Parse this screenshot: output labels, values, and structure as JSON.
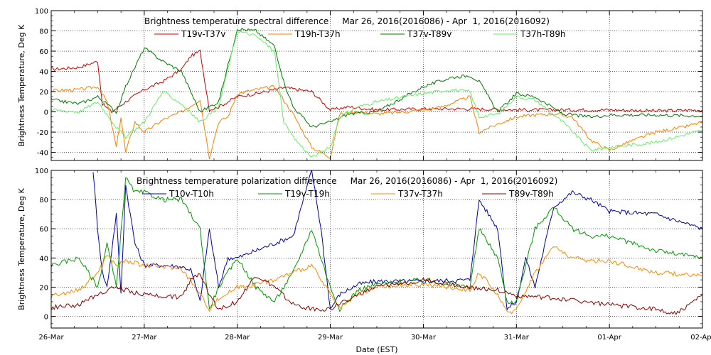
{
  "chart_data": [
    {
      "type": "line",
      "title": "Brightness temperature spectral difference     Mar 26, 2016(2016086) - Apr  1, 2016(2016092)",
      "ylabel": "Brightness Temperature, Deg K",
      "xlabel": "",
      "xlim": [
        0,
        7
      ],
      "ylim": [
        -48,
        100
      ],
      "yticks": [
        -40,
        -20,
        0,
        20,
        40,
        60,
        80,
        100
      ],
      "xtick_labels": [
        "26-Mar",
        "27-Mar",
        "28-Mar",
        "29-Mar",
        "30-Mar",
        "31-Mar",
        "01-Apr",
        "02-Apr"
      ],
      "grid": true,
      "legend_position": "top",
      "series": [
        {
          "name": "T19v-T37v",
          "color": "#cc0000",
          "x": [
            0,
            0.3,
            0.5,
            0.55,
            0.65,
            0.8,
            1.0,
            1.2,
            1.4,
            1.5,
            1.6,
            1.7,
            1.8,
            2.0,
            2.2,
            2.5,
            2.8,
            3.0,
            3.2,
            3.5,
            4.0,
            4.5,
            5.0,
            5.5,
            6.0,
            6.5,
            7.0
          ],
          "values": [
            42,
            44,
            50,
            8,
            0,
            10,
            22,
            30,
            42,
            55,
            60,
            2,
            5,
            15,
            18,
            24,
            20,
            2,
            5,
            2,
            3,
            3,
            2,
            2,
            2,
            1,
            2
          ]
        },
        {
          "name": "T19h-T37h",
          "color": "#ff7f00",
          "x": [
            0,
            0.3,
            0.5,
            0.6,
            0.7,
            0.75,
            0.8,
            0.9,
            1.0,
            1.2,
            1.4,
            1.6,
            1.7,
            1.8,
            1.9,
            2.0,
            2.2,
            2.4,
            2.6,
            2.8,
            3.0,
            3.1,
            3.3,
            3.5,
            3.8,
            4.0,
            4.2,
            4.5,
            4.6,
            4.8,
            5.0,
            5.2,
            5.4,
            5.6,
            5.8,
            6.0,
            6.2,
            6.5,
            6.8,
            7.0
          ],
          "values": [
            21,
            22,
            25,
            10,
            -35,
            -5,
            -40,
            -10,
            -20,
            -8,
            0,
            12,
            -45,
            -10,
            -5,
            18,
            22,
            25,
            -2,
            -35,
            -45,
            -2,
            0,
            -2,
            0,
            2,
            5,
            15,
            -20,
            -12,
            -5,
            -3,
            -2,
            -5,
            -28,
            -38,
            -30,
            -20,
            -15,
            -10
          ]
        },
        {
          "name": "T37v-T89v",
          "color": "#007700",
          "x": [
            0,
            0.3,
            0.5,
            0.7,
            0.8,
            1.0,
            1.2,
            1.4,
            1.6,
            1.8,
            2.0,
            2.2,
            2.4,
            2.5,
            2.6,
            2.8,
            3.0,
            3.2,
            3.5,
            3.8,
            4.0,
            4.3,
            4.5,
            4.6,
            4.8,
            5.0,
            5.2,
            5.5,
            5.8,
            6.0,
            6.5,
            7.0
          ],
          "values": [
            12,
            8,
            15,
            0,
            25,
            63,
            50,
            40,
            0,
            10,
            82,
            80,
            65,
            30,
            5,
            -15,
            -10,
            -2,
            0,
            15,
            25,
            34,
            36,
            30,
            0,
            18,
            15,
            -2,
            -5,
            -3,
            -3,
            -4
          ]
        },
        {
          "name": "T37h-T89h",
          "color": "#66ee66",
          "x": [
            0,
            0.3,
            0.5,
            0.7,
            0.8,
            1.0,
            1.2,
            1.4,
            1.6,
            1.8,
            2.0,
            2.2,
            2.4,
            2.5,
            2.6,
            2.8,
            3.0,
            3.1,
            3.3,
            3.5,
            3.8,
            4.0,
            4.3,
            4.5,
            4.6,
            4.8,
            5.0,
            5.2,
            5.5,
            5.8,
            6.0,
            6.5,
            7.0
          ],
          "values": [
            2,
            0,
            10,
            -15,
            -25,
            -10,
            20,
            8,
            -10,
            5,
            80,
            75,
            60,
            -10,
            -25,
            -45,
            -35,
            -5,
            5,
            10,
            15,
            18,
            22,
            20,
            -5,
            -2,
            15,
            12,
            -10,
            -38,
            -35,
            -30,
            -18
          ]
        }
      ]
    },
    {
      "type": "line",
      "title": "Brightness temperature polarization difference     Mar 26, 2016(2016086) - Apr  1, 2016(2016092)",
      "ylabel": "Brightness Temperature, Deg K",
      "xlabel": "Date (EST)",
      "xlim": [
        0,
        7
      ],
      "ylim": [
        -8,
        100
      ],
      "yticks": [
        0,
        20,
        40,
        60,
        80,
        100
      ],
      "xtick_labels": [
        "26-Mar",
        "27-Mar",
        "28-Mar",
        "29-Mar",
        "30-Mar",
        "31-Mar",
        "01-Apr",
        "02-Apr"
      ],
      "grid": true,
      "legend_position": "top",
      "series": [
        {
          "name": "T10v-T10h",
          "color": "#0000aa",
          "x": [
            0.45,
            0.5,
            0.55,
            0.6,
            0.7,
            0.75,
            0.8,
            0.9,
            1.0,
            1.2,
            1.4,
            1.5,
            1.6,
            1.7,
            1.8,
            1.9,
            2.0,
            2.2,
            2.4,
            2.6,
            2.8,
            2.9,
            3.0,
            3.1,
            3.3,
            3.5,
            4.0,
            4.5,
            4.6,
            4.8,
            4.9,
            5.0,
            5.1,
            5.2,
            5.4,
            5.6,
            5.8,
            6.0,
            6.5,
            7.0
          ],
          "values": [
            100,
            60,
            30,
            20,
            70,
            15,
            90,
            50,
            35,
            35,
            34,
            32,
            10,
            60,
            20,
            40,
            40,
            45,
            50,
            55,
            100,
            60,
            5,
            15,
            22,
            24,
            24,
            25,
            80,
            60,
            5,
            10,
            40,
            20,
            75,
            85,
            80,
            72,
            70,
            60
          ]
        },
        {
          "name": "T19v-T19h",
          "color": "#009900",
          "x": [
            0,
            0.3,
            0.5,
            0.6,
            0.7,
            0.8,
            0.9,
            1.0,
            1.2,
            1.4,
            1.6,
            1.7,
            1.8,
            2.0,
            2.2,
            2.4,
            2.6,
            2.8,
            3.0,
            3.1,
            3.3,
            3.5,
            4.0,
            4.5,
            4.6,
            4.8,
            4.9,
            5.0,
            5.2,
            5.4,
            5.6,
            5.8,
            6.0,
            6.5,
            7.0
          ],
          "values": [
            35,
            40,
            20,
            50,
            20,
            95,
            85,
            85,
            80,
            80,
            60,
            5,
            20,
            40,
            20,
            10,
            30,
            60,
            20,
            5,
            18,
            22,
            25,
            20,
            60,
            40,
            10,
            10,
            60,
            75,
            60,
            55,
            55,
            45,
            40
          ]
        },
        {
          "name": "T37v-T37h",
          "color": "#ff8800",
          "x": [
            0,
            0.3,
            0.5,
            0.6,
            0.7,
            0.8,
            1.0,
            1.2,
            1.4,
            1.6,
            1.7,
            1.8,
            2.0,
            2.2,
            2.4,
            2.6,
            2.8,
            3.0,
            3.1,
            3.3,
            3.5,
            4.0,
            4.5,
            4.6,
            4.8,
            4.9,
            5.0,
            5.2,
            5.4,
            5.6,
            5.8,
            6.0,
            6.5,
            7.0
          ],
          "values": [
            14,
            18,
            30,
            42,
            35,
            38,
            35,
            34,
            33,
            15,
            5,
            12,
            20,
            22,
            25,
            30,
            35,
            15,
            5,
            15,
            20,
            22,
            18,
            30,
            15,
            2,
            5,
            30,
            48,
            40,
            38,
            38,
            30,
            28
          ]
        },
        {
          "name": "T89v-T89h",
          "color": "#880000",
          "x": [
            0,
            0.3,
            0.5,
            0.6,
            0.7,
            0.9,
            1.0,
            1.2,
            1.4,
            1.5,
            1.6,
            1.7,
            1.8,
            2.0,
            2.2,
            2.4,
            2.6,
            2.8,
            3.0,
            3.2,
            3.5,
            4.0,
            4.5,
            4.8,
            5.0,
            5.5,
            6.0,
            6.5,
            6.7,
            6.8,
            7.0
          ],
          "values": [
            6,
            8,
            15,
            18,
            20,
            16,
            15,
            14,
            13,
            25,
            30,
            15,
            5,
            10,
            28,
            20,
            8,
            5,
            5,
            12,
            20,
            25,
            20,
            18,
            14,
            12,
            8,
            5,
            2,
            5,
            15
          ]
        }
      ]
    }
  ]
}
